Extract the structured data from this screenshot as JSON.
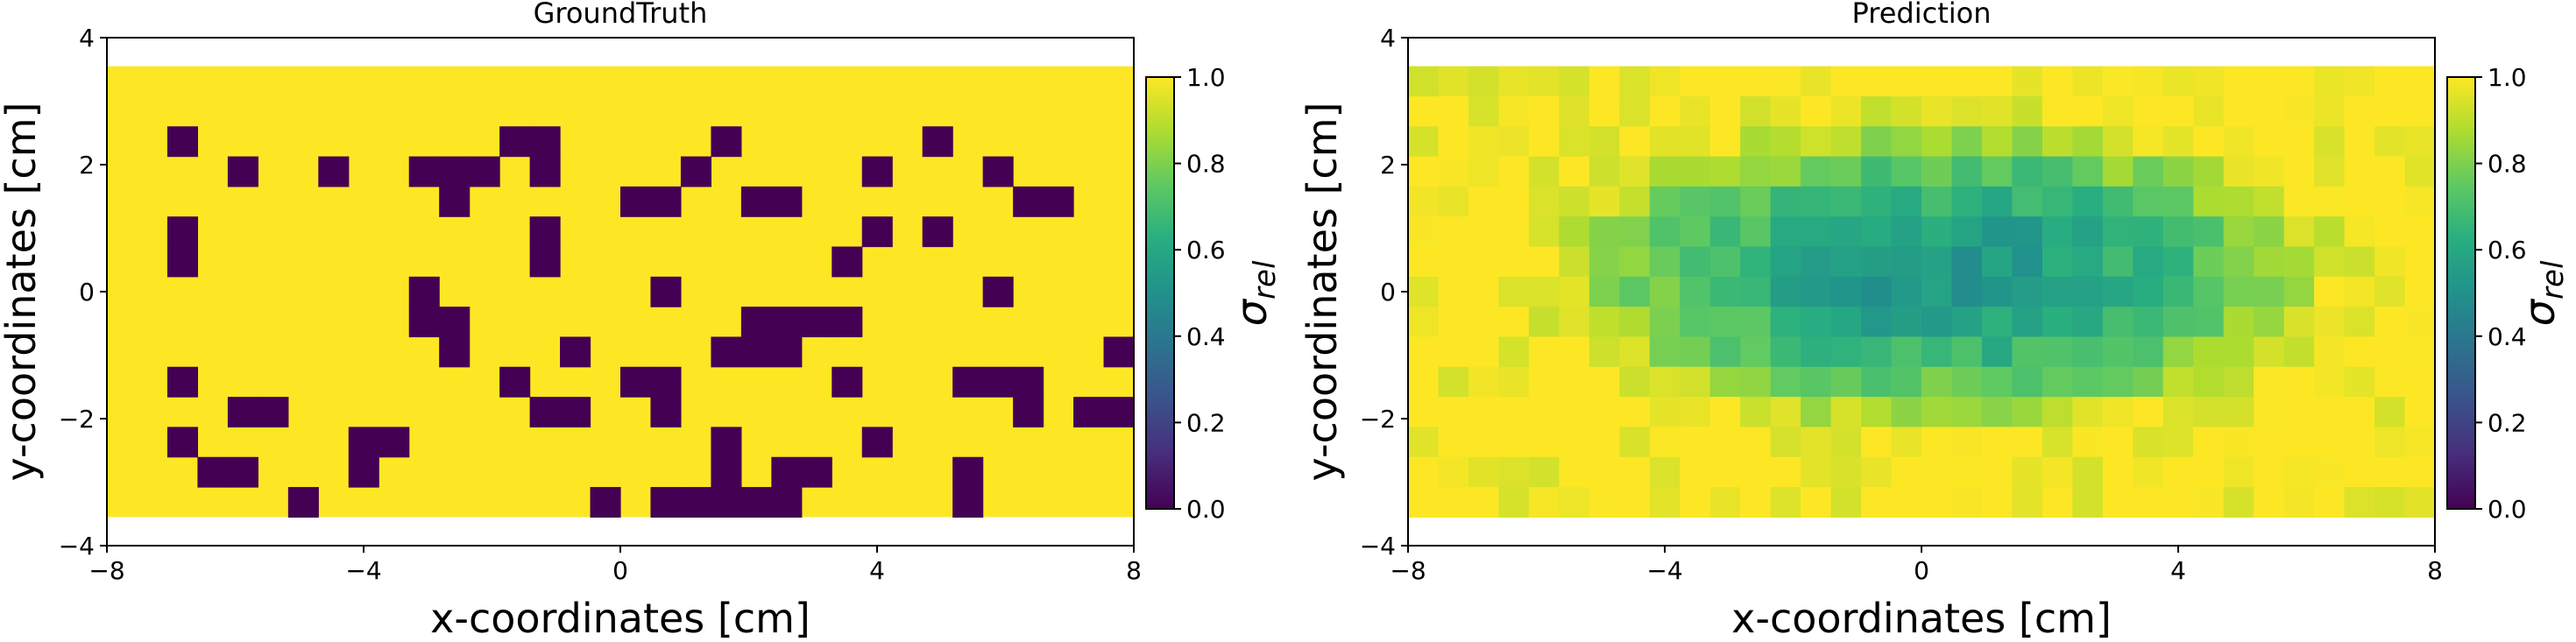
{
  "colors": {
    "viridis_0": "#440154",
    "viridis_1": "#fde725",
    "axis": "#000000",
    "background": "#ffffff"
  },
  "chart_data": [
    {
      "type": "heatmap",
      "title": "GroundTruth",
      "xlabel": "x-coordinates [cm]",
      "ylabel": "y-coordinates [cm]",
      "xlim": [
        -8,
        8
      ],
      "ylim": [
        -4,
        4
      ],
      "extent": [
        -8,
        8,
        -3.55,
        3.55
      ],
      "xticks": [
        -8,
        -4,
        0,
        4,
        8
      ],
      "xtick_labels": [
        "−8",
        "−4",
        "0",
        "4",
        "8"
      ],
      "yticks": [
        -4,
        -2,
        0,
        2,
        4
      ],
      "ytick_labels": [
        "−4",
        "−2",
        "0",
        "2",
        "4"
      ],
      "colorbar": {
        "label_main": "σ",
        "label_sub": "rel",
        "range": [
          0,
          1
        ],
        "ticks": [
          "0.0",
          "0.2",
          "0.4",
          "0.6",
          "0.8",
          "1.0"
        ]
      },
      "grid": false,
      "rows": [
        "..................................",
        "...................................",
        "..#..........##.....#......#.........#.",
        "....#..#..###.#....#.....#...#........",
        "...........#.....##..##.......##......",
        "..#...........#..........#.#........",
        "..#...........#.........#...........",
        "..........#.......#..........#......",
        "..........##.........####.............",
        "...........#...#....###..........#..",
        "..#..........#...##.....#...###...#..",
        "....##........##..#...........#.####..",
        "..#.....##..........#....#........#..",
        "...##...#...........#.##....#.....##..",
        "......#.........#.#####.....#.....#...",
        "......#.......#..#........#..........",
        "........#.......#####........#......",
        "...............#....#..............",
        "..........................",
        ".................................."
      ]
    },
    {
      "type": "heatmap",
      "title": "Prediction",
      "xlabel": "x-coordinates [cm]",
      "ylabel": "y-coordinates [cm]",
      "xlim": [
        -8,
        8
      ],
      "ylim": [
        -4,
        4
      ],
      "extent": [
        -8,
        8,
        -3.55,
        3.55
      ],
      "xticks": [
        -8,
        -4,
        0,
        4,
        8
      ],
      "xtick_labels": [
        "−8",
        "−4",
        "0",
        "4",
        "8"
      ],
      "yticks": [
        -4,
        -2,
        0,
        2,
        4
      ],
      "ytick_labels": [
        "−4",
        "−2",
        "0",
        "2",
        "4"
      ],
      "colorbar": {
        "label_main": "σ",
        "label_sub": "rel",
        "range": [
          0,
          1
        ],
        "ticks": [
          "0.0",
          "0.2",
          "0.4",
          "0.6",
          "0.8",
          "1.0"
        ]
      },
      "grid": false,
      "model": {
        "cx": 0.3,
        "cy": 0.3,
        "sx": 6.6,
        "sy": 2.7,
        "min_value": 0.52,
        "max_value": 1.0
      }
    }
  ]
}
